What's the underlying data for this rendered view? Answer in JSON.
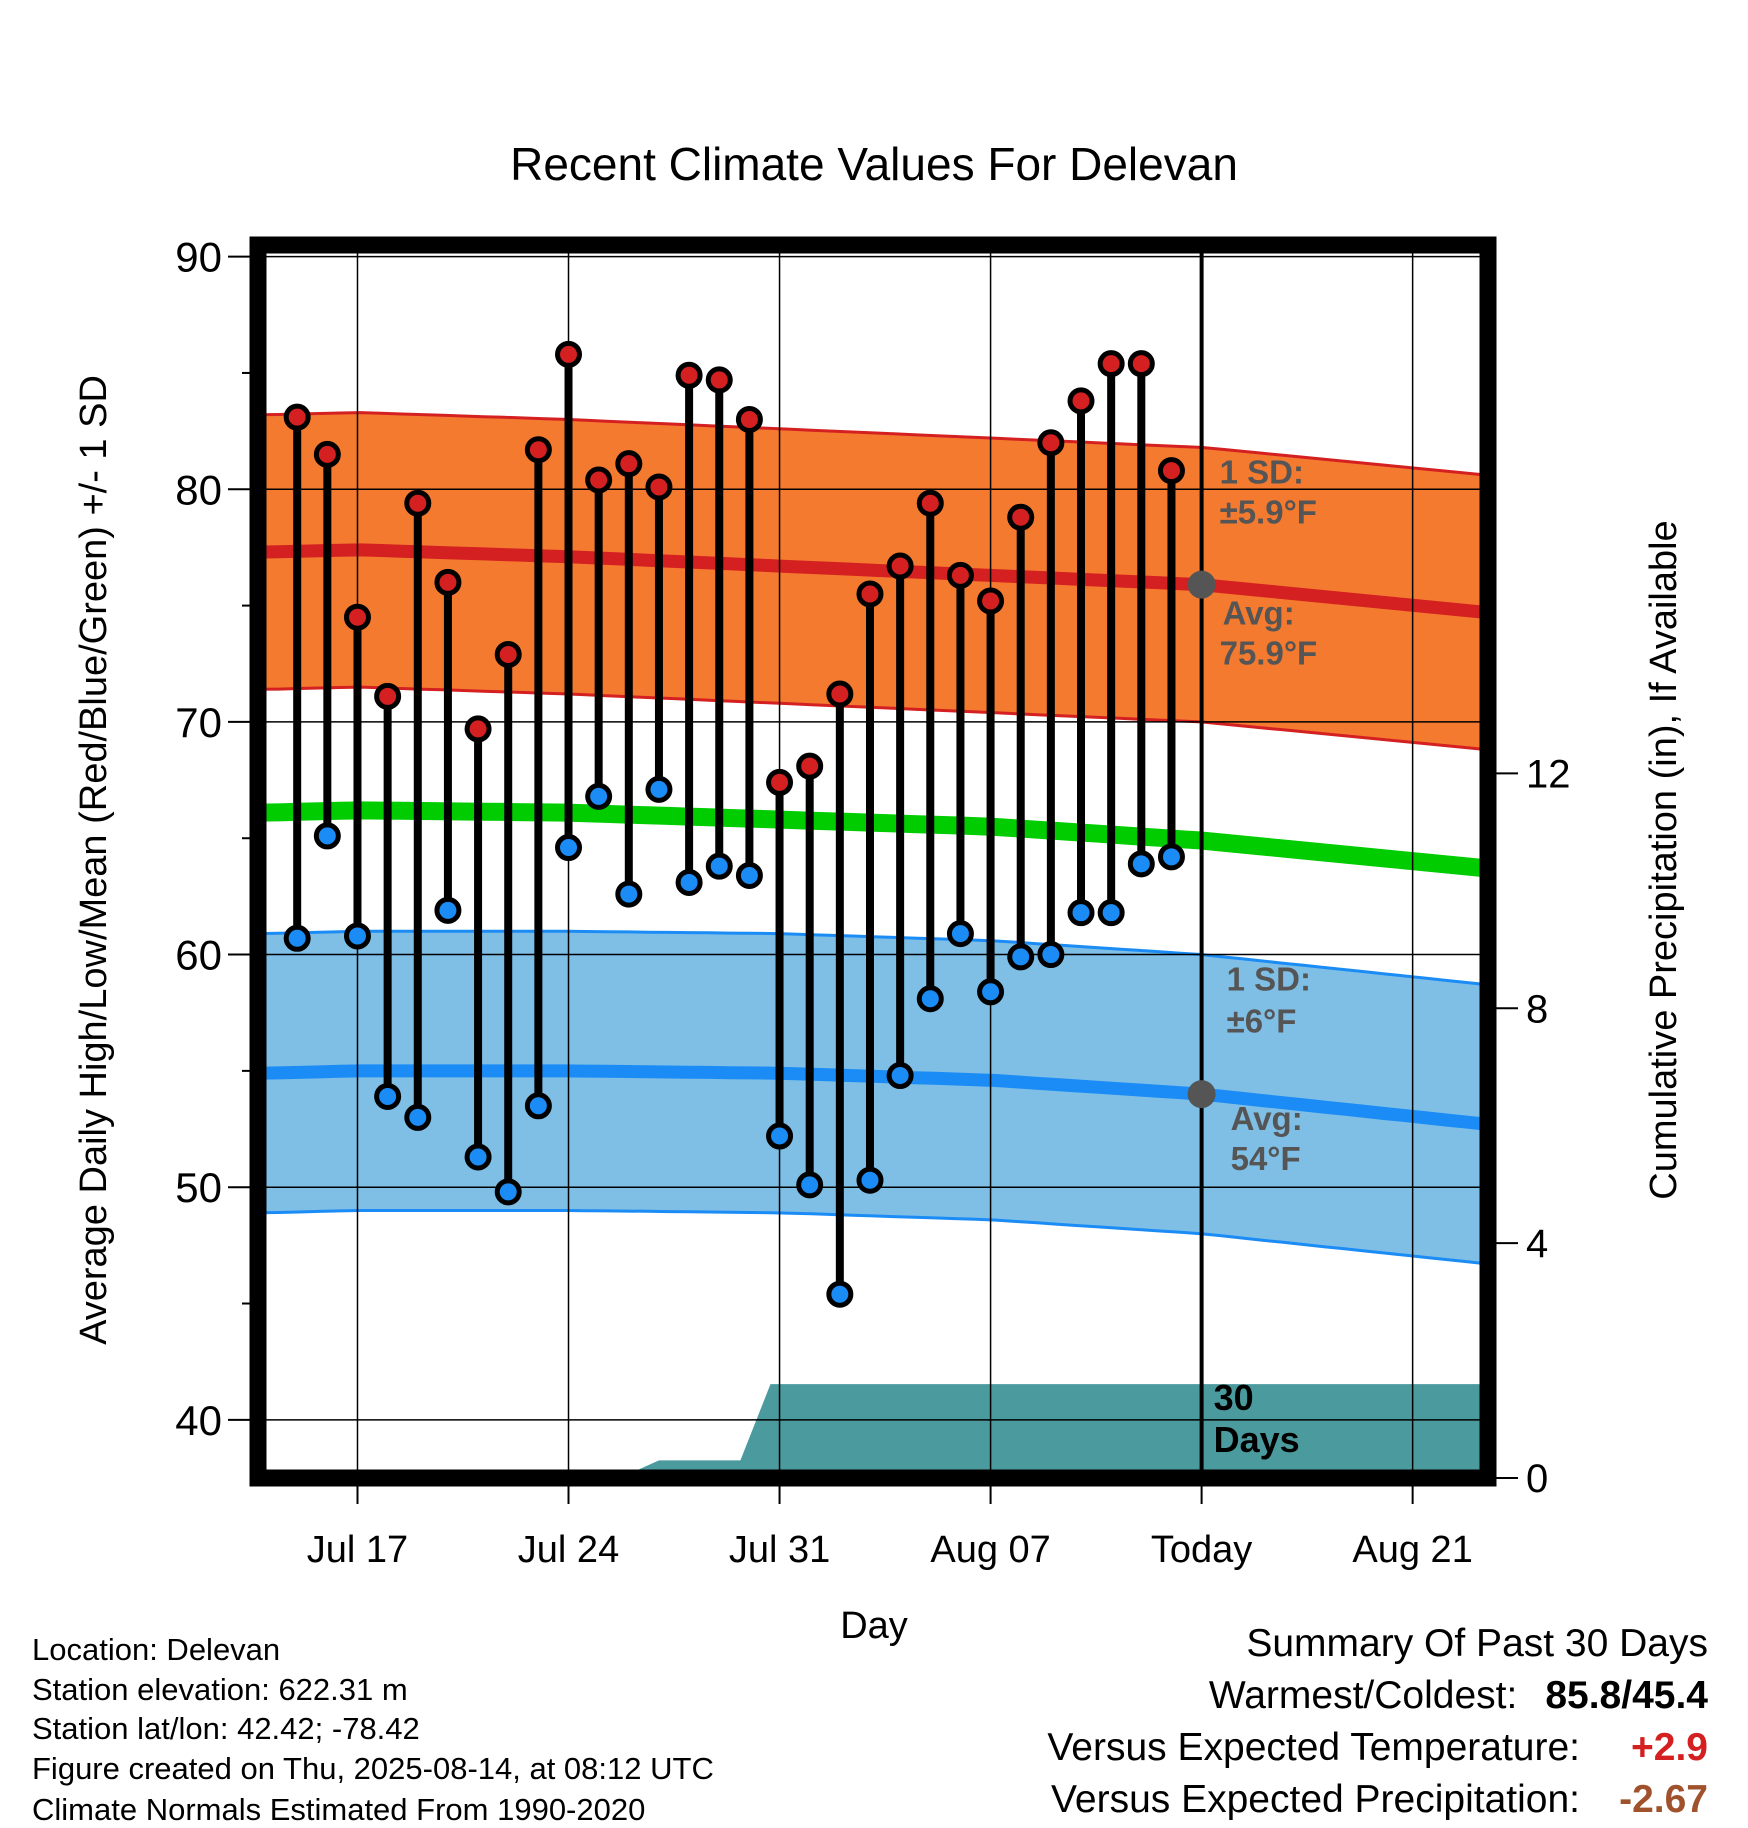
{
  "chart_data": {
    "type": "line",
    "title": "Recent Climate Values For Delevan",
    "xlabel": "Day",
    "ylabel": "Average Daily High/Low/Mean (Red/Blue/Green) +/- 1 SD",
    "y2label": "Cumulative Precipitation (in), If Available",
    "ylim": [
      37.5,
      90.5
    ],
    "y2lim": [
      0,
      21
    ],
    "yticks": [
      "40",
      "50",
      "60",
      "70",
      "80",
      "90"
    ],
    "y2ticks": [
      "0",
      "4",
      "8",
      "12"
    ],
    "y2tick_values": [
      0,
      4,
      8,
      12
    ],
    "x_tick_labels": [
      "Jul 17",
      "Jul 24",
      "Jul 31",
      "Aug 07",
      "Today",
      "Aug 21"
    ],
    "x_tick_days": [
      -28,
      -21,
      -14,
      -7,
      0,
      7
    ],
    "xlim": [
      -31.3,
      9.5
    ],
    "x_units": "days relative to Today (2025-08-14)",
    "days": [
      -30,
      -29,
      -28,
      -27,
      -26,
      -25,
      -24,
      -23,
      -22,
      -21,
      -20,
      -19,
      -18,
      -17,
      -16,
      -15,
      -14,
      -13,
      -12,
      -11,
      -10,
      -9,
      -8,
      -7,
      -6,
      -5,
      -4,
      -3,
      -2,
      -1
    ],
    "highs": [
      83.1,
      81.5,
      74.5,
      71.1,
      79.4,
      76.0,
      69.7,
      72.9,
      81.7,
      85.8,
      80.4,
      81.1,
      80.1,
      84.9,
      84.7,
      83.0,
      67.4,
      68.1,
      71.2,
      75.5,
      76.7,
      79.4,
      76.3,
      75.2,
      78.8,
      82.0,
      83.8,
      85.4,
      85.4,
      80.8
    ],
    "lows": [
      60.7,
      65.1,
      60.8,
      53.9,
      53.0,
      61.9,
      51.3,
      49.8,
      53.5,
      64.6,
      66.8,
      62.6,
      67.1,
      63.1,
      63.8,
      63.4,
      52.2,
      50.1,
      45.4,
      50.3,
      54.8,
      58.1,
      60.9,
      58.4,
      59.9,
      60.0,
      61.8,
      61.8,
      63.9,
      64.2
    ],
    "normals": {
      "days": [
        -31,
        -28,
        -21,
        -14,
        -7,
        0,
        9.5
      ],
      "high_avg": [
        77.3,
        77.4,
        77.1,
        76.7,
        76.3,
        75.9,
        74.7
      ],
      "high_sd": 5.9,
      "low_avg": [
        54.9,
        55.0,
        55.0,
        54.9,
        54.6,
        54.0,
        52.7
      ],
      "low_sd": 6.0,
      "mean_avg": [
        66.1,
        66.2,
        66.1,
        65.8,
        65.5,
        64.9,
        63.7
      ]
    },
    "precip_cumulative": {
      "days": [
        -31.3,
        -19.3,
        -18,
        -15.3,
        -14.3,
        9.5
      ],
      "values": [
        0,
        0,
        0.3,
        0.3,
        1.6,
        1.6
      ]
    },
    "today_high_label": [
      "1 SD:",
      "±5.9°F",
      "Avg:",
      "75.9°F"
    ],
    "today_low_label": [
      "1 SD:",
      "±6°F",
      "Avg:",
      "54°F"
    ],
    "days_label": [
      "30",
      "Days"
    ],
    "colors": {
      "high": "#d42020",
      "high_band": "#f47a30",
      "low": "#1b8cf5",
      "low_band": "#7fbfe6",
      "mean": "#00cc00",
      "precip": "#4a9a9e",
      "annotation": "#555555"
    }
  },
  "info": {
    "location": "Location: Delevan",
    "elevation": "Station elevation: 622.31 m",
    "latlon": "Station lat/lon: 42.42; -78.42",
    "created": "Figure created on Thu, 2025-08-14, at 08:12 UTC",
    "normals": "Climate Normals Estimated From 1990-2020"
  },
  "summary": {
    "title": "Summary Of Past 30 Days",
    "warmest_label": "Warmest/Coldest:",
    "warmest_value": "85.8/45.4",
    "temp_label": "Versus Expected Temperature:",
    "temp_value": "+2.9",
    "temp_color": "#d42020",
    "precip_label": "Versus Expected Precipitation:",
    "precip_value": "-2.67",
    "precip_color": "#a0522d"
  }
}
